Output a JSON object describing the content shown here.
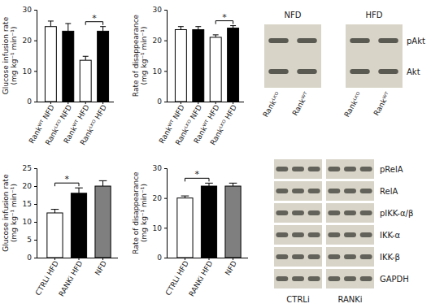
{
  "chart_data": [
    {
      "type": "bar",
      "y_label": "Glucose infusion rate (mg kg⁻¹ min⁻¹)",
      "categories": [
        "Rankᵂᵀ NFD",
        "Rankᴸᴷᴼ NFD",
        "Rankᵂᵀ HFD",
        "Rankᴸᴷᴼ HFD"
      ],
      "values": [
        24.5,
        23,
        13.5,
        23
      ],
      "errors": [
        1.8,
        2.5,
        1.3,
        1.5
      ],
      "colors": [
        "#ffffff",
        "#000000",
        "#ffffff",
        "#000000"
      ],
      "ylim": [
        0,
        30
      ],
      "yticks": [
        0,
        10,
        20,
        30
      ],
      "annotations": [
        {
          "text": "*",
          "from": "Rankᵂᵀ HFD",
          "to": "Rankᴸᴷᴼ HFD"
        }
      ]
    },
    {
      "type": "bar",
      "y_label": "Rate of disappearance (mg kg⁻¹ min⁻¹)",
      "categories": [
        "Rankᵂᵀ NFD",
        "Rankᴸᴷᴼ NFD",
        "Rankᵂᵀ HFD",
        "Rankᴸᴷᴼ HFD"
      ],
      "values": [
        23.5,
        23.5,
        21,
        24
      ],
      "errors": [
        1,
        1,
        0.8,
        0.8
      ],
      "colors": [
        "#ffffff",
        "#000000",
        "#ffffff",
        "#000000"
      ],
      "ylim": [
        0,
        30
      ],
      "yticks": [
        0,
        10,
        20,
        30
      ],
      "annotations": [
        {
          "text": "*",
          "from": "Rankᵂᵀ HFD",
          "to": "Rankᴸᴷᴼ HFD"
        }
      ]
    },
    {
      "type": "bar",
      "y_label": "Glucose infusion rate (mg kg⁻¹ min⁻¹)",
      "categories": [
        "CTRLi HFD",
        "RANKi HFD",
        "NFD"
      ],
      "values": [
        12.5,
        18,
        20
      ],
      "errors": [
        1,
        1.5,
        1.5
      ],
      "colors": [
        "#ffffff",
        "#000000",
        "#7f7f7f"
      ],
      "ylim": [
        0,
        25
      ],
      "yticks": [
        0,
        5,
        10,
        15,
        20,
        25
      ],
      "annotations": [
        {
          "text": "*",
          "from": "CTRLi HFD",
          "to": "RANKi HFD"
        }
      ]
    },
    {
      "type": "bar",
      "y_label": "Rate of disappearance (mg kg⁻¹ min⁻¹)",
      "categories": [
        "CTRLi HFD",
        "RANKi HFD",
        "NFD"
      ],
      "values": [
        20,
        24,
        24
      ],
      "errors": [
        0.7,
        1,
        1
      ],
      "colors": [
        "#ffffff",
        "#000000",
        "#7f7f7f"
      ],
      "ylim": [
        0,
        30
      ],
      "yticks": [
        0,
        10,
        20,
        30
      ],
      "annotations": [
        {
          "text": "*",
          "from": "CTRLi HFD",
          "to": "RANKi HFD"
        }
      ]
    }
  ],
  "blots": [
    {
      "headers": [
        "NFD",
        "HFD"
      ],
      "lanes": [
        "Rankᴸᴷᴼ",
        "Rankᵂᵀ"
      ],
      "rows": [
        "pAkt",
        "Akt"
      ]
    },
    {
      "groups": [
        "CTRLi",
        "RANKi"
      ],
      "rows": [
        "pRelA",
        "RelA",
        "pIKK-α/β",
        "IKK-α",
        "IKK-β",
        "GAPDH"
      ]
    }
  ]
}
